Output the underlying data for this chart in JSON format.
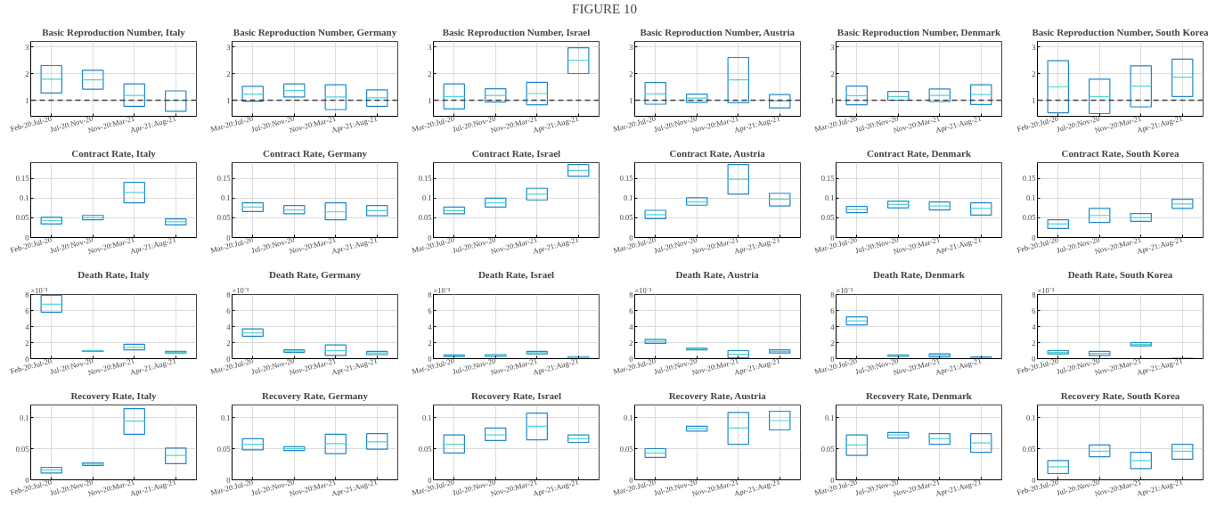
{
  "chart_data": [
    {
      "type": "other",
      "title": "FIGURE 10"
    },
    {
      "type": "box",
      "title": "Basic Reproduction Number, Italy",
      "categories": [
        "Feb-20:Jul-20",
        "Jul-20:Nov-20",
        "Nov-20:Mar-21",
        "Apr-21:Aug-21"
      ],
      "ylim": [
        0.4,
        3.2
      ],
      "yticks": [
        1,
        2,
        3
      ],
      "grid": true,
      "ref_lines": [
        {
          "axis": "y",
          "value": 1,
          "color": "#404040",
          "line_style": "dashed"
        }
      ],
      "series": [
        {
          "color": "#1f88cc",
          "boxes": [
            {
              "low": 1.27,
              "q1": 1.27,
              "median": 1.79,
              "q3": 2.3,
              "high": 2.3
            },
            {
              "low": 1.41,
              "q1": 1.41,
              "median": 1.76,
              "q3": 2.12,
              "high": 2.12
            },
            {
              "low": 0.77,
              "q1": 0.77,
              "median": 1.18,
              "q3": 1.61,
              "high": 1.61
            },
            {
              "low": 0.59,
              "q1": 0.59,
              "median": 1.0,
              "q3": 1.35,
              "high": 1.35
            }
          ]
        }
      ]
    },
    {
      "type": "box",
      "title": "Basic Reproduction Number, Germany",
      "categories": [
        "Mar-20:Jul-20",
        "Jul-20:Nov-20",
        "Nov-20:Mar-21",
        "Apr-21:Aug-21"
      ],
      "ylim": [
        0.4,
        3.2
      ],
      "yticks": [
        1,
        2,
        3
      ],
      "grid": true,
      "ref_lines": [
        {
          "axis": "y",
          "value": 1,
          "color": "#404040",
          "line_style": "dashed"
        }
      ],
      "series": [
        {
          "color": "#1f88cc",
          "boxes": [
            {
              "low": 0.96,
              "q1": 0.96,
              "median": 1.23,
              "q3": 1.52,
              "high": 1.52
            },
            {
              "low": 1.12,
              "q1": 1.12,
              "median": 1.36,
              "q3": 1.61,
              "high": 1.61
            },
            {
              "low": 0.65,
              "q1": 0.65,
              "median": 1.12,
              "q3": 1.58,
              "high": 1.58
            },
            {
              "low": 0.77,
              "q1": 0.77,
              "median": 1.09,
              "q3": 1.39,
              "high": 1.39
            }
          ]
        }
      ]
    },
    {
      "type": "box",
      "title": "Basic Reproduction Number, Israel",
      "categories": [
        "Mar-20:Jul-20",
        "Jul-20:Nov-20",
        "Nov-20:Mar-21",
        "Apr-21:Aug-21"
      ],
      "ylim": [
        0.4,
        3.2
      ],
      "yticks": [
        1,
        2,
        3
      ],
      "grid": true,
      "ref_lines": [
        {
          "axis": "y",
          "value": 1,
          "color": "#404040",
          "line_style": "dashed"
        }
      ],
      "series": [
        {
          "color": "#1f88cc",
          "boxes": [
            {
              "low": 0.68,
              "q1": 0.68,
              "median": 1.14,
              "q3": 1.61,
              "high": 1.61
            },
            {
              "low": 0.94,
              "q1": 0.94,
              "median": 1.18,
              "q3": 1.43,
              "high": 1.43
            },
            {
              "low": 0.83,
              "q1": 0.83,
              "median": 1.25,
              "q3": 1.67,
              "high": 1.67
            },
            {
              "low": 2.0,
              "q1": 2.0,
              "median": 2.5,
              "q3": 2.96,
              "high": 2.96
            }
          ]
        }
      ]
    },
    {
      "type": "box",
      "title": "Basic Reproduction Number, Austria",
      "categories": [
        "Mar-20:Jul-20",
        "Jul-20:Nov-20",
        "Nov-20:Mar-21",
        "Apr-21:Aug-21"
      ],
      "ylim": [
        0.4,
        3.2
      ],
      "yticks": [
        1,
        2,
        3
      ],
      "grid": true,
      "ref_lines": [
        {
          "axis": "y",
          "value": 1,
          "color": "#404040",
          "line_style": "dashed"
        }
      ],
      "series": [
        {
          "color": "#1f88cc",
          "boxes": [
            {
              "low": 0.85,
              "q1": 0.85,
              "median": 1.24,
              "q3": 1.66,
              "high": 1.66
            },
            {
              "low": 0.92,
              "q1": 0.92,
              "median": 1.08,
              "q3": 1.23,
              "high": 1.23
            },
            {
              "low": 0.91,
              "q1": 0.91,
              "median": 1.76,
              "q3": 2.6,
              "high": 2.6
            },
            {
              "low": 0.71,
              "q1": 0.71,
              "median": 0.97,
              "q3": 1.21,
              "high": 1.21
            }
          ]
        }
      ]
    },
    {
      "type": "box",
      "title": "Basic Reproduction Number, Denmark",
      "categories": [
        "Mar-20:Jul-20",
        "Jul-20:Nov-20",
        "Nov-20:Mar-21",
        "Apr-21:Aug-21"
      ],
      "ylim": [
        0.4,
        3.2
      ],
      "yticks": [
        1,
        2,
        3
      ],
      "grid": true,
      "ref_lines": [
        {
          "axis": "y",
          "value": 1,
          "color": "#404040",
          "line_style": "dashed"
        }
      ],
      "series": [
        {
          "color": "#1f88cc",
          "boxes": [
            {
              "low": 0.83,
              "q1": 0.83,
              "median": 1.17,
              "q3": 1.53,
              "high": 1.53
            },
            {
              "low": 1.0,
              "q1": 1.0,
              "median": 1.14,
              "q3": 1.33,
              "high": 1.33
            },
            {
              "low": 0.95,
              "q1": 0.95,
              "median": 1.18,
              "q3": 1.42,
              "high": 1.42
            },
            {
              "low": 0.84,
              "q1": 0.84,
              "median": 1.21,
              "q3": 1.58,
              "high": 1.58
            }
          ]
        }
      ]
    },
    {
      "type": "box",
      "title": "Basic Reproduction Number, South Korea",
      "categories": [
        "Feb-20:Jul-20",
        "Jul-20:Nov-20",
        "Nov-20:Mar-21",
        "Apr-21:Aug-21"
      ],
      "ylim": [
        0.4,
        3.2
      ],
      "yticks": [
        1,
        2,
        3
      ],
      "grid": true,
      "ref_lines": [
        {
          "axis": "y",
          "value": 1,
          "color": "#404040",
          "line_style": "dashed"
        }
      ],
      "series": [
        {
          "color": "#1f88cc",
          "boxes": [
            {
              "low": 0.53,
              "q1": 0.53,
              "median": 1.5,
              "q3": 2.48,
              "high": 2.48
            },
            {
              "low": 0.5,
              "q1": 0.5,
              "median": 1.14,
              "q3": 1.79,
              "high": 1.79
            },
            {
              "low": 0.75,
              "q1": 0.75,
              "median": 1.53,
              "q3": 2.29,
              "high": 2.29
            },
            {
              "low": 1.14,
              "q1": 1.14,
              "median": 1.86,
              "q3": 2.54,
              "high": 2.54
            }
          ]
        }
      ]
    },
    {
      "type": "box",
      "title": "Contract Rate, Italy",
      "categories": [
        "Feb-20:Jul-20",
        "Jul-20:Nov-20",
        "Nov-20:Mar-21",
        "Apr-21:Aug-21"
      ],
      "ylim": [
        0,
        0.19
      ],
      "yticks": [
        0,
        0.05,
        0.1,
        0.15
      ],
      "grid": true,
      "series": [
        {
          "color": "#1f88cc",
          "boxes": [
            {
              "low": 0.034,
              "q1": 0.034,
              "median": 0.043,
              "q3": 0.051,
              "high": 0.051
            },
            {
              "low": 0.045,
              "q1": 0.045,
              "median": 0.05,
              "q3": 0.056,
              "high": 0.056
            },
            {
              "low": 0.088,
              "q1": 0.088,
              "median": 0.114,
              "q3": 0.14,
              "high": 0.14
            },
            {
              "low": 0.032,
              "q1": 0.032,
              "median": 0.04,
              "q3": 0.047,
              "high": 0.047
            }
          ]
        }
      ]
    },
    {
      "type": "box",
      "title": "Contract Rate, Germany",
      "categories": [
        "Mar-20:Jul-20",
        "Jul-20:Nov-20",
        "Nov-20:Mar-21",
        "Apr-21:Aug-21"
      ],
      "ylim": [
        0,
        0.19
      ],
      "yticks": [
        0,
        0.05,
        0.1,
        0.15
      ],
      "grid": true,
      "series": [
        {
          "color": "#1f88cc",
          "boxes": [
            {
              "low": 0.066,
              "q1": 0.066,
              "median": 0.077,
              "q3": 0.088,
              "high": 0.088
            },
            {
              "low": 0.06,
              "q1": 0.06,
              "median": 0.07,
              "q3": 0.081,
              "high": 0.081
            },
            {
              "low": 0.045,
              "q1": 0.045,
              "median": 0.065,
              "q3": 0.088,
              "high": 0.088
            },
            {
              "low": 0.055,
              "q1": 0.055,
              "median": 0.068,
              "q3": 0.081,
              "high": 0.081
            }
          ]
        }
      ]
    },
    {
      "type": "box",
      "title": "Contract Rate, Israel",
      "categories": [
        "Mar-20:Jul-20",
        "Jul-20:Nov-20",
        "Nov-20:Mar-21",
        "Apr-21:Aug-21"
      ],
      "ylim": [
        0,
        0.19
      ],
      "yticks": [
        0,
        0.05,
        0.1,
        0.15
      ],
      "grid": true,
      "series": [
        {
          "color": "#1f88cc",
          "boxes": [
            {
              "low": 0.06,
              "q1": 0.06,
              "median": 0.068,
              "q3": 0.077,
              "high": 0.077
            },
            {
              "low": 0.077,
              "q1": 0.077,
              "median": 0.088,
              "q3": 0.1,
              "high": 0.1
            },
            {
              "low": 0.095,
              "q1": 0.095,
              "median": 0.11,
              "q3": 0.125,
              "high": 0.125
            },
            {
              "low": 0.155,
              "q1": 0.155,
              "median": 0.17,
              "q3": 0.185,
              "high": 0.185
            }
          ]
        }
      ]
    },
    {
      "type": "box",
      "title": "Contract Rate, Austria",
      "categories": [
        "Mar-20:Jul-20",
        "Jul-20:Nov-20",
        "Nov-20:Mar-21",
        "Apr-21:Aug-21"
      ],
      "ylim": [
        0,
        0.19
      ],
      "yticks": [
        0,
        0.05,
        0.1,
        0.15
      ],
      "grid": true,
      "series": [
        {
          "color": "#1f88cc",
          "boxes": [
            {
              "low": 0.048,
              "q1": 0.048,
              "median": 0.058,
              "q3": 0.069,
              "high": 0.069
            },
            {
              "low": 0.082,
              "q1": 0.082,
              "median": 0.09,
              "q3": 0.101,
              "high": 0.101
            },
            {
              "low": 0.11,
              "q1": 0.11,
              "median": 0.148,
              "q3": 0.185,
              "high": 0.185
            },
            {
              "low": 0.08,
              "q1": 0.08,
              "median": 0.097,
              "q3": 0.112,
              "high": 0.112
            }
          ]
        }
      ]
    },
    {
      "type": "box",
      "title": "Contract Rate, Denmark",
      "categories": [
        "Mar-20:Jul-20",
        "Jul-20:Nov-20",
        "Nov-20:Mar-21",
        "Apr-21:Aug-21"
      ],
      "ylim": [
        0,
        0.19
      ],
      "yticks": [
        0,
        0.05,
        0.1,
        0.15
      ],
      "grid": true,
      "series": [
        {
          "color": "#1f88cc",
          "boxes": [
            {
              "low": 0.063,
              "q1": 0.063,
              "median": 0.071,
              "q3": 0.079,
              "high": 0.079
            },
            {
              "low": 0.075,
              "q1": 0.075,
              "median": 0.084,
              "q3": 0.092,
              "high": 0.092
            },
            {
              "low": 0.07,
              "q1": 0.07,
              "median": 0.08,
              "q3": 0.09,
              "high": 0.09
            },
            {
              "low": 0.057,
              "q1": 0.057,
              "median": 0.074,
              "q3": 0.088,
              "high": 0.088
            }
          ]
        }
      ]
    },
    {
      "type": "box",
      "title": "Contract Rate, South Korea",
      "categories": [
        "Feb-20:Jul-20",
        "Jul-20:Nov-20",
        "Nov-20:Mar-21",
        "Apr-21:Aug-21"
      ],
      "ylim": [
        0,
        0.19
      ],
      "yticks": [
        0,
        0.05,
        0.1,
        0.15
      ],
      "grid": true,
      "series": [
        {
          "color": "#1f88cc",
          "boxes": [
            {
              "low": 0.023,
              "q1": 0.023,
              "median": 0.034,
              "q3": 0.045,
              "high": 0.045
            },
            {
              "low": 0.038,
              "q1": 0.038,
              "median": 0.056,
              "q3": 0.074,
              "high": 0.074
            },
            {
              "low": 0.041,
              "q1": 0.041,
              "median": 0.05,
              "q3": 0.061,
              "high": 0.061
            },
            {
              "low": 0.074,
              "q1": 0.074,
              "median": 0.085,
              "q3": 0.097,
              "high": 0.097
            }
          ]
        }
      ]
    },
    {
      "type": "box",
      "title": "Death Rate, Italy",
      "annotations": [
        "×10⁻³"
      ],
      "categories": [
        "Feb-20:Jul-20",
        "Jul-20:Nov-20",
        "Nov-20:Mar-21",
        "Apr-21:Aug-21"
      ],
      "ylim": [
        0,
        8
      ],
      "yticks": [
        0,
        2,
        4,
        6,
        8
      ],
      "grid": true,
      "series": [
        {
          "color": "#1f88cc",
          "boxes": [
            {
              "low": 5.8,
              "q1": 5.8,
              "median": 6.8,
              "q3": 7.9,
              "high": 7.9
            },
            {
              "low": 0.9,
              "q1": 0.9,
              "median": 0.95,
              "q3": 1.0,
              "high": 1.0
            },
            {
              "low": 1.1,
              "q1": 1.1,
              "median": 1.4,
              "q3": 1.8,
              "high": 1.8
            },
            {
              "low": 0.7,
              "q1": 0.7,
              "median": 0.8,
              "q3": 0.9,
              "high": 0.9
            }
          ]
        }
      ]
    },
    {
      "type": "box",
      "title": "Death Rate, Germany",
      "annotations": [
        "×10⁻³"
      ],
      "categories": [
        "Mar-20:Jul-20",
        "Jul-20:Nov-20",
        "Nov-20:Mar-21",
        "Apr-21:Aug-21"
      ],
      "ylim": [
        0,
        8
      ],
      "yticks": [
        0,
        2,
        4,
        6,
        8
      ],
      "grid": true,
      "series": [
        {
          "color": "#1f88cc",
          "boxes": [
            {
              "low": 2.8,
              "q1": 2.8,
              "median": 3.2,
              "q3": 3.7,
              "high": 3.7
            },
            {
              "low": 0.8,
              "q1": 0.8,
              "median": 0.95,
              "q3": 1.1,
              "high": 1.1
            },
            {
              "low": 0.4,
              "q1": 0.4,
              "median": 1.0,
              "q3": 1.7,
              "high": 1.7
            },
            {
              "low": 0.5,
              "q1": 0.5,
              "median": 0.7,
              "q3": 0.9,
              "high": 0.9
            }
          ]
        }
      ]
    },
    {
      "type": "box",
      "title": "Death Rate, Israel",
      "annotations": [
        "×10⁻³"
      ],
      "categories": [
        "Mar-20:Jul-20",
        "Jul-20:Nov-20",
        "Nov-20:Mar-21",
        "Apr-21:Aug-21"
      ],
      "ylim": [
        0,
        8
      ],
      "yticks": [
        0,
        2,
        4,
        6,
        8
      ],
      "grid": true,
      "series": [
        {
          "color": "#1f88cc",
          "boxes": [
            {
              "low": 0.25,
              "q1": 0.25,
              "median": 0.35,
              "q3": 0.45,
              "high": 0.45
            },
            {
              "low": 0.3,
              "q1": 0.3,
              "median": 0.4,
              "q3": 0.5,
              "high": 0.5
            },
            {
              "low": 0.6,
              "q1": 0.6,
              "median": 0.75,
              "q3": 0.9,
              "high": 0.9
            },
            {
              "low": 0.05,
              "q1": 0.05,
              "median": 0.15,
              "q3": 0.25,
              "high": 0.25
            }
          ]
        }
      ]
    },
    {
      "type": "box",
      "title": "Death Rate, Austria",
      "annotations": [
        "×10⁻³"
      ],
      "categories": [
        "Mar-20:Jul-20",
        "Jul-20:Nov-20",
        "Nov-20:Mar-21",
        "Apr-21:Aug-21"
      ],
      "ylim": [
        0,
        8
      ],
      "yticks": [
        0,
        2,
        4,
        6,
        8
      ],
      "grid": true,
      "series": [
        {
          "color": "#1f88cc",
          "boxes": [
            {
              "low": 1.9,
              "q1": 1.9,
              "median": 2.15,
              "q3": 2.4,
              "high": 2.4
            },
            {
              "low": 1.1,
              "q1": 1.1,
              "median": 1.2,
              "q3": 1.3,
              "high": 1.3
            },
            {
              "low": 0.1,
              "q1": 0.1,
              "median": 0.55,
              "q3": 1.0,
              "high": 1.0
            },
            {
              "low": 0.7,
              "q1": 0.7,
              "median": 0.9,
              "q3": 1.1,
              "high": 1.1
            }
          ]
        }
      ]
    },
    {
      "type": "box",
      "title": "Death Rate, Denmark",
      "annotations": [
        "×10⁻³"
      ],
      "categories": [
        "Mar-20:Jul-20",
        "Jul-20:Nov-20",
        "Nov-20:Mar-21",
        "Apr-21:Aug-21"
      ],
      "ylim": [
        0,
        8
      ],
      "yticks": [
        0,
        2,
        4,
        6,
        8
      ],
      "grid": true,
      "series": [
        {
          "color": "#1f88cc",
          "boxes": [
            {
              "low": 4.2,
              "q1": 4.2,
              "median": 4.7,
              "q3": 5.2,
              "high": 5.2
            },
            {
              "low": 0.3,
              "q1": 0.3,
              "median": 0.38,
              "q3": 0.45,
              "high": 0.45
            },
            {
              "low": 0.2,
              "q1": 0.2,
              "median": 0.4,
              "q3": 0.6,
              "high": 0.6
            },
            {
              "low": 0.02,
              "q1": 0.02,
              "median": 0.1,
              "q3": 0.2,
              "high": 0.2
            }
          ]
        }
      ]
    },
    {
      "type": "box",
      "title": "Death Rate, South Korea",
      "annotations": [
        "×10⁻³"
      ],
      "categories": [
        "Feb-20:Jul-20",
        "Jul-20:Nov-20",
        "Nov-20:Mar-21",
        "Apr-21:Aug-21"
      ],
      "ylim": [
        0,
        8
      ],
      "yticks": [
        0,
        2,
        4,
        6,
        8
      ],
      "grid": true,
      "series": [
        {
          "color": "#1f88cc",
          "boxes": [
            {
              "low": 0.6,
              "q1": 0.6,
              "median": 0.8,
              "q3": 1.0,
              "high": 1.0
            },
            {
              "low": 0.4,
              "q1": 0.4,
              "median": 0.65,
              "q3": 0.9,
              "high": 0.9
            },
            {
              "low": 1.6,
              "q1": 1.6,
              "median": 1.8,
              "q3": 2.0,
              "high": 2.0
            },
            {
              "low": 0.0,
              "q1": 0.0,
              "median": 0.02,
              "q3": 0.05,
              "high": 0.05
            }
          ]
        }
      ]
    },
    {
      "type": "box",
      "title": "Recovery Rate, Italy",
      "categories": [
        "Feb-20:Jul-20",
        "Jul-20:Nov-20",
        "Nov-20:Mar-21",
        "Apr-21:Aug-21"
      ],
      "ylim": [
        0,
        0.12
      ],
      "yticks": [
        0,
        0.05,
        0.1
      ],
      "grid": true,
      "series": [
        {
          "color": "#1f88cc",
          "boxes": [
            {
              "low": 0.011,
              "q1": 0.011,
              "median": 0.016,
              "q3": 0.02,
              "high": 0.02
            },
            {
              "low": 0.023,
              "q1": 0.023,
              "median": 0.025,
              "q3": 0.027,
              "high": 0.027
            },
            {
              "low": 0.073,
              "q1": 0.073,
              "median": 0.094,
              "q3": 0.114,
              "high": 0.114
            },
            {
              "low": 0.026,
              "q1": 0.026,
              "median": 0.039,
              "q3": 0.051,
              "high": 0.051
            }
          ]
        }
      ]
    },
    {
      "type": "box",
      "title": "Recovery Rate, Germany",
      "categories": [
        "Mar-20:Jul-20",
        "Jul-20:Nov-20",
        "Nov-20:Mar-21",
        "Apr-21:Aug-21"
      ],
      "ylim": [
        0,
        0.12
      ],
      "yticks": [
        0,
        0.05,
        0.1
      ],
      "grid": true,
      "series": [
        {
          "color": "#1f88cc",
          "boxes": [
            {
              "low": 0.048,
              "q1": 0.048,
              "median": 0.057,
              "q3": 0.066,
              "high": 0.066
            },
            {
              "low": 0.047,
              "q1": 0.047,
              "median": 0.05,
              "q3": 0.053,
              "high": 0.053
            },
            {
              "low": 0.042,
              "q1": 0.042,
              "median": 0.058,
              "q3": 0.073,
              "high": 0.073
            },
            {
              "low": 0.049,
              "q1": 0.049,
              "median": 0.061,
              "q3": 0.074,
              "high": 0.074
            }
          ]
        }
      ]
    },
    {
      "type": "box",
      "title": "Recovery Rate, Israel",
      "categories": [
        "Mar-20:Jul-20",
        "Jul-20:Nov-20",
        "Nov-20:Mar-21",
        "Apr-21:Aug-21"
      ],
      "ylim": [
        0,
        0.12
      ],
      "yticks": [
        0,
        0.05,
        0.1
      ],
      "grid": true,
      "series": [
        {
          "color": "#1f88cc",
          "boxes": [
            {
              "low": 0.043,
              "q1": 0.043,
              "median": 0.057,
              "q3": 0.072,
              "high": 0.072
            },
            {
              "low": 0.063,
              "q1": 0.063,
              "median": 0.072,
              "q3": 0.083,
              "high": 0.083
            },
            {
              "low": 0.064,
              "q1": 0.064,
              "median": 0.086,
              "q3": 0.107,
              "high": 0.107
            },
            {
              "low": 0.06,
              "q1": 0.06,
              "median": 0.066,
              "q3": 0.072,
              "high": 0.072
            }
          ]
        }
      ]
    },
    {
      "type": "box",
      "title": "Recovery Rate, Austria",
      "categories": [
        "Mar-20:Jul-20",
        "Jul-20:Nov-20",
        "Nov-20:Mar-21",
        "Apr-21:Aug-21"
      ],
      "ylim": [
        0,
        0.12
      ],
      "yticks": [
        0,
        0.05,
        0.1
      ],
      "grid": true,
      "series": [
        {
          "color": "#1f88cc",
          "boxes": [
            {
              "low": 0.036,
              "q1": 0.036,
              "median": 0.043,
              "q3": 0.05,
              "high": 0.05
            },
            {
              "low": 0.078,
              "q1": 0.078,
              "median": 0.082,
              "q3": 0.086,
              "high": 0.086
            },
            {
              "low": 0.057,
              "q1": 0.057,
              "median": 0.083,
              "q3": 0.108,
              "high": 0.108
            },
            {
              "low": 0.08,
              "q1": 0.08,
              "median": 0.095,
              "q3": 0.11,
              "high": 0.11
            }
          ]
        }
      ]
    },
    {
      "type": "box",
      "title": "Recovery Rate, Denmark",
      "categories": [
        "Mar-20:Jul-20",
        "Jul-20:Nov-20",
        "Nov-20:Mar-21",
        "Apr-21:Aug-21"
      ],
      "ylim": [
        0,
        0.12
      ],
      "yticks": [
        0,
        0.05,
        0.1
      ],
      "grid": true,
      "series": [
        {
          "color": "#1f88cc",
          "boxes": [
            {
              "low": 0.039,
              "q1": 0.039,
              "median": 0.056,
              "q3": 0.072,
              "high": 0.072
            },
            {
              "low": 0.067,
              "q1": 0.067,
              "median": 0.072,
              "q3": 0.076,
              "high": 0.076
            },
            {
              "low": 0.057,
              "q1": 0.057,
              "median": 0.066,
              "q3": 0.074,
              "high": 0.074
            },
            {
              "low": 0.044,
              "q1": 0.044,
              "median": 0.059,
              "q3": 0.074,
              "high": 0.074
            }
          ]
        }
      ]
    },
    {
      "type": "box",
      "title": "Recovery Rate, South Korea",
      "categories": [
        "Feb-20:Jul-20",
        "Jul-20:Nov-20",
        "Nov-20:Mar-21",
        "Apr-21:Aug-21"
      ],
      "ylim": [
        0,
        0.12
      ],
      "yticks": [
        0,
        0.05,
        0.1
      ],
      "grid": true,
      "series": [
        {
          "color": "#1f88cc",
          "boxes": [
            {
              "low": 0.01,
              "q1": 0.01,
              "median": 0.021,
              "q3": 0.031,
              "high": 0.031
            },
            {
              "low": 0.037,
              "q1": 0.037,
              "median": 0.046,
              "q3": 0.056,
              "high": 0.056
            },
            {
              "low": 0.018,
              "q1": 0.018,
              "median": 0.031,
              "q3": 0.044,
              "high": 0.044
            },
            {
              "low": 0.033,
              "q1": 0.033,
              "median": 0.046,
              "q3": 0.057,
              "high": 0.057
            }
          ]
        }
      ]
    }
  ]
}
